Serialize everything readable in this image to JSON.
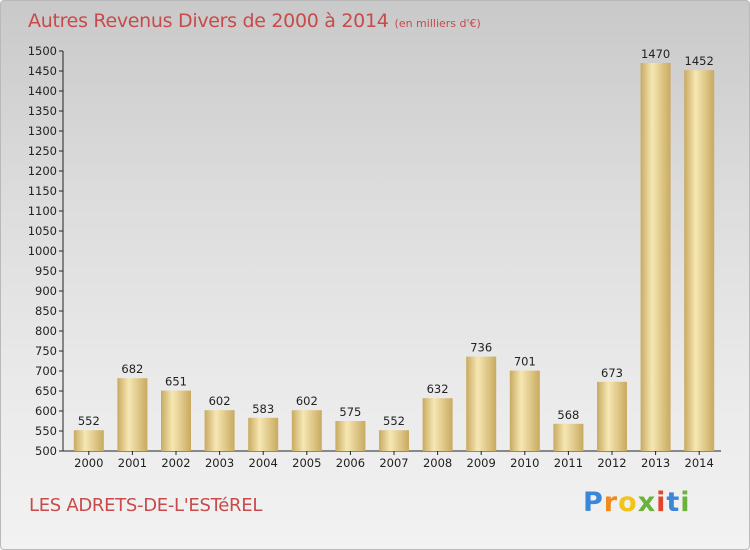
{
  "title": "Autres Revenus Divers de 2000 à 2014",
  "subtitle": "(en milliers d'€)",
  "location": "LES ADRETS-DE-L'ESTéREL",
  "brand": {
    "letters": [
      "P",
      "r",
      "o",
      "x",
      "i",
      "t",
      "i"
    ],
    "colors": [
      "#3a87d9",
      "#f08a1c",
      "#f0c419",
      "#6ab23a",
      "#e2452c",
      "#3a87d9",
      "#6ab23a"
    ]
  },
  "colors": {
    "text": "#c84a4a",
    "bar_light": "#f6e7b3",
    "bar_dark": "#c8aa60"
  },
  "chart_data": {
    "type": "bar",
    "categories": [
      "2000",
      "2001",
      "2002",
      "2003",
      "2004",
      "2005",
      "2006",
      "2007",
      "2008",
      "2009",
      "2010",
      "2011",
      "2012",
      "2013",
      "2014"
    ],
    "values": [
      552,
      682,
      651,
      602,
      583,
      602,
      575,
      552,
      632,
      736,
      701,
      568,
      673,
      1470,
      1452
    ],
    "ylim": [
      500,
      1500
    ],
    "yticks": [
      500,
      550,
      600,
      650,
      700,
      750,
      800,
      850,
      900,
      950,
      1000,
      1050,
      1100,
      1150,
      1200,
      1250,
      1300,
      1350,
      1400,
      1450,
      1500
    ],
    "grid": false,
    "data_labels": true
  }
}
